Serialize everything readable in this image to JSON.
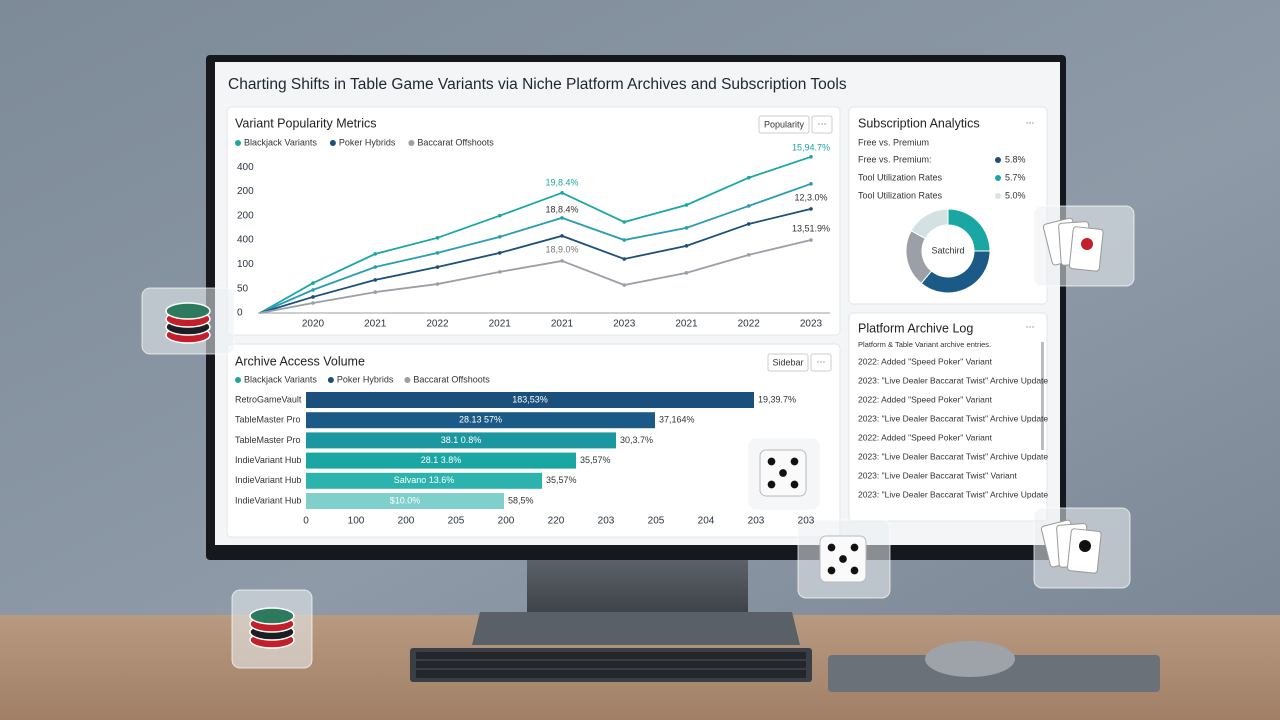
{
  "title": "Charting Shifts in Table Game Variants via Niche Platform Archives and Subscription Tools",
  "chart_data": [
    {
      "type": "line",
      "title": "Variant Popularity Metrics",
      "button": "Popularity",
      "categories": [
        "2020",
        "2021",
        "2022",
        "2021",
        "2021",
        "2023",
        "2021",
        "2022",
        "2023"
      ],
      "y_labels": [
        "400",
        "200",
        "200",
        "400",
        "100",
        "50",
        "0"
      ],
      "ylim": [
        0,
        6.7
      ],
      "series": [
        {
          "name": "Blackjack Variants",
          "color": "#1aa7a3",
          "values": [
            1.23,
            2.43,
            3.09,
            4.0,
            4.94,
            3.74,
            4.44,
            5.56,
            6.42
          ]
        },
        {
          "color": "#2a9db4",
          "values": [
            0.95,
            1.89,
            2.47,
            3.13,
            3.91,
            3.0,
            3.5,
            4.4,
            5.31
          ]
        },
        {
          "name": "Poker Hybrids",
          "color": "#1b4f7c",
          "values": [
            0.66,
            1.36,
            1.89,
            2.47,
            3.17,
            2.22,
            2.76,
            3.66,
            4.28
          ]
        },
        {
          "name": "Baccarat Offshoots",
          "color": "#9aa0a6",
          "values": [
            0.41,
            0.86,
            1.19,
            1.69,
            2.14,
            1.15,
            1.65,
            2.39,
            3.0
          ]
        }
      ],
      "annotations": [
        "15,94.7%",
        "19,8.4%",
        "18,8.4%",
        "18,9.0%",
        "12,3.0%",
        "13,51.9%"
      ]
    },
    {
      "type": "bar",
      "title": "Archive Access Volume",
      "button": "Sidebar",
      "legend": [
        {
          "name": "Blackjack Variants",
          "color": "#1aa7a3"
        },
        {
          "name": "Poker Hybrids",
          "color": "#1b4f7c"
        },
        {
          "name": "Baccarat Offshoots",
          "color": "#9aa0a6"
        }
      ],
      "categories": [
        "RetroGameVault",
        "TableMaster Pro",
        "TableMaster Pro",
        "IndieVariant Hub",
        "IndieVariant Hub",
        "IndieVariant Hub"
      ],
      "values": [
        8.96,
        6.98,
        6.2,
        5.4,
        4.72,
        3.96
      ],
      "colors": [
        "#1b4f7c",
        "#1b5a86",
        "#1a97a0",
        "#1aa7a3",
        "#2cb3ad",
        "#7fd0cb"
      ],
      "inner_labels": [
        "183,53%",
        "28.13 57%",
        "38.1 0.8%",
        "28.1 3.8%",
        "Salvano 13.6%",
        "$10.0%"
      ],
      "outer_labels": [
        "19,39.7%",
        "37,164%",
        "30,3.7%",
        "35,57%",
        "35,57%",
        "58,5%"
      ],
      "x_labels": [
        "0",
        "100",
        "200",
        "205",
        "200",
        "220",
        "203",
        "205",
        "204",
        "203",
        "203"
      ],
      "xlim": [
        0,
        10
      ]
    }
  ],
  "subscription": {
    "title": "Subscription Analytics",
    "subtitle": "Free vs. Premium",
    "rows": [
      {
        "label": "Free vs. Premium:",
        "value": "5.8%",
        "color": "#1b4f7c"
      },
      {
        "label": "Tool Utilization Rates",
        "value": "5.7%",
        "color": "#1aa7a3"
      },
      {
        "label": "Tool Utilization Rates",
        "value": "5.0%",
        "color": "#d5e3e3"
      }
    ],
    "donut": {
      "center": "Satchird",
      "values": [
        25,
        36,
        22,
        17
      ],
      "colors": [
        "#1aa7a3",
        "#1b5a86",
        "#9aa0a6",
        "#d3e1e2"
      ]
    }
  },
  "archive_log": {
    "title": "Platform Archive Log",
    "subtitle": "Platform & Table Variant archive entries.",
    "entries": [
      "2022: Added \"Speed Poker\" Variant",
      "2023: \"Live Dealer Baccarat Twist\" Archive Update",
      "2022: Added \"Speed Poker\" Variant",
      "2023: \"Live Dealer Baccarat Twist\" Archive Update",
      "2022: Added \"Speed Poker\" Variant",
      "2023: \"Live Dealer Baccarat Twist\" Archive Update",
      "2023: \"Live Dealer Baccarat Twist\" Variant",
      "2023: \"Live Dealer Baccarat Twist\" Archive Update"
    ]
  }
}
